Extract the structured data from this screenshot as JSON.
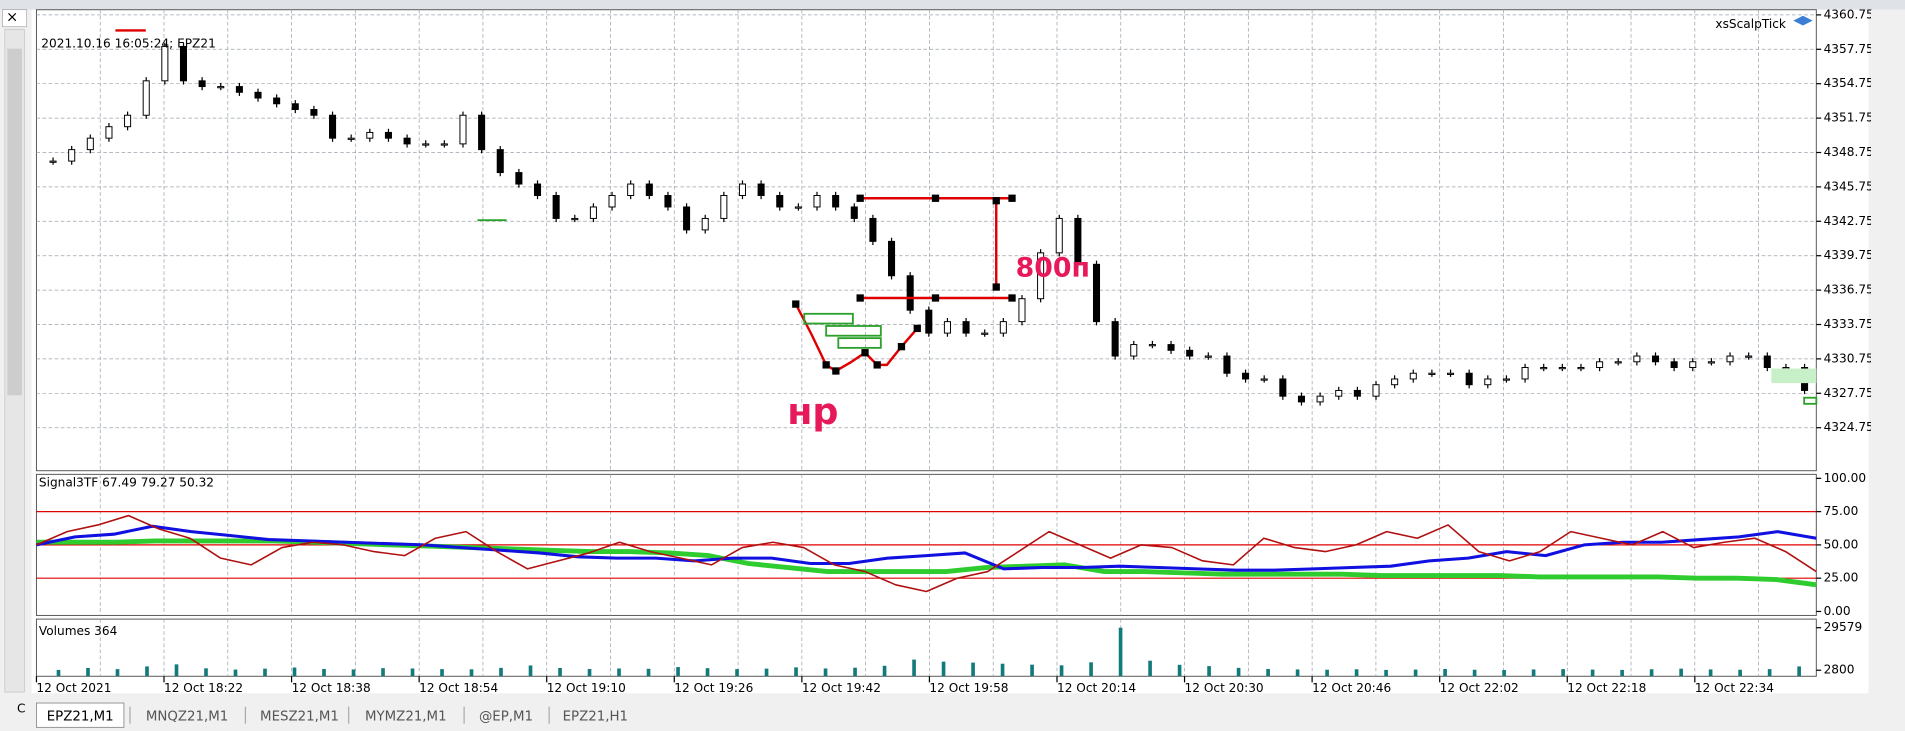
{
  "window": {
    "symbol_info": "2021.10.16 16:05:24; EPZ21",
    "expert": "xsScalpTick"
  },
  "price_chart": {
    "type": "candlestick",
    "closes": [
      4348,
      4349,
      4350,
      4351,
      4352,
      4355,
      4358,
      4355,
      4354.5,
      4354.5,
      4354,
      4353.5,
      4353,
      4352.5,
      4352,
      4350,
      4350,
      4350.5,
      4350,
      4349.5,
      4349.5,
      4349.5,
      4352,
      4349,
      4347,
      4346,
      4345,
      4343,
      4343,
      4344,
      4345,
      4346,
      4345,
      4344,
      4342,
      4343,
      4345,
      4346,
      4345,
      4344,
      4344,
      4345,
      4344,
      4343,
      4341,
      4338,
      4335,
      4333,
      4334,
      4333,
      4333,
      4334,
      4336,
      4340,
      4343,
      4339,
      4334,
      4331,
      4332,
      4332,
      4331.5,
      4331,
      4331,
      4329.5,
      4329,
      4329,
      4327.5,
      4327,
      4327.5,
      4328,
      4327.5,
      4328.5,
      4329,
      4329.5,
      4329.5,
      4329.5,
      4328.5,
      4329,
      4329,
      4330,
      4330,
      4330,
      4330,
      4330.5,
      4330.5,
      4331,
      4330.5,
      4330,
      4330.5,
      4330.5,
      4331,
      4331,
      4330,
      4330,
      4328
    ],
    "ylim": [
      4321.0,
      4361.2
    ],
    "yticks": [
      4360.75,
      4357.75,
      4354.75,
      4351.75,
      4348.75,
      4345.75,
      4342.75,
      4339.75,
      4336.75,
      4333.75,
      4330.75,
      4327.75,
      4324.75
    ],
    "annotations": [
      "800п",
      "нр"
    ]
  },
  "indicator": {
    "type": "line",
    "title": "Signal3TF 67.49 79.27 50.32",
    "ylim": [
      -3,
      103
    ],
    "yticks": [
      {
        "value": 100,
        "label": "100.00"
      },
      {
        "value": 75,
        "label": "75.00"
      },
      {
        "value": 50,
        "label": "50.00"
      },
      {
        "value": 25,
        "label": "25.00"
      },
      {
        "value": 0,
        "label": "0.00"
      }
    ],
    "levels": [
      75,
      50,
      25
    ],
    "level_color": "#e00000",
    "series": [
      {
        "color": "#2ecc2e",
        "width": 4,
        "values": [
          52,
          52,
          52,
          53,
          53,
          53,
          53,
          52,
          51,
          50,
          49,
          48,
          47,
          46,
          45,
          45,
          44,
          42,
          36,
          33,
          30,
          30,
          30,
          30,
          33,
          34,
          35,
          30,
          30,
          29,
          28,
          28,
          28,
          28,
          27,
          27,
          27,
          27,
          26,
          26,
          26,
          26,
          25,
          25,
          24,
          20
        ]
      },
      {
        "color": "#1010e0",
        "width": 2.5,
        "values": [
          50,
          56,
          58,
          64,
          60,
          57,
          54,
          53,
          52,
          51,
          50,
          48,
          46,
          44,
          41,
          40,
          40,
          38,
          40,
          40,
          36,
          36,
          40,
          42,
          44,
          32,
          33,
          33,
          34,
          33,
          32,
          31,
          31,
          32,
          33,
          34,
          38,
          40,
          45,
          42,
          50,
          52,
          52,
          54,
          56,
          60,
          55
        ]
      },
      {
        "color": "#b01010",
        "width": 1.3,
        "values": [
          50,
          60,
          65,
          72,
          62,
          55,
          40,
          35,
          48,
          52,
          50,
          45,
          42,
          55,
          60,
          45,
          32,
          38,
          44,
          52,
          45,
          40,
          35,
          48,
          52,
          48,
          35,
          30,
          20,
          15,
          25,
          30,
          45,
          60,
          50,
          40,
          50,
          48,
          38,
          35,
          55,
          48,
          45,
          50,
          60,
          55,
          65,
          45,
          38,
          45,
          60,
          55,
          50,
          60,
          48,
          52,
          55,
          45,
          30
        ]
      }
    ]
  },
  "volumes": {
    "type": "bar",
    "title": "Volumes 364",
    "color": "#127a7a",
    "values": [
      3000,
      4200,
      3500,
      5200,
      6500,
      4000,
      3200,
      3800,
      4500,
      3600,
      3300,
      4100,
      3900,
      3500,
      3400,
      4300,
      5800,
      4200,
      3600,
      3900,
      3700,
      4800,
      4100,
      3500,
      3800,
      4600,
      3900,
      4400,
      5600,
      9500,
      8200,
      7600,
      6900,
      6300,
      5900,
      7800,
      29579,
      8800,
      6200,
      5400,
      4300,
      3600,
      3300,
      3100,
      3400,
      3000,
      3200,
      3600,
      3100,
      2950,
      3300,
      3500,
      3200,
      3000,
      3400,
      3800,
      3300,
      3100,
      3500,
      5200
    ],
    "ylim": [
      -1000,
      35000
    ],
    "yticks": [
      29579,
      2800
    ]
  },
  "x_axis": {
    "labels": [
      "12 Oct 2021",
      "12 Oct 18:22",
      "12 Oct 18:38",
      "12 Oct 18:54",
      "12 Oct 19:10",
      "12 Oct 19:26",
      "12 Oct 19:42",
      "12 Oct 19:58",
      "12 Oct 20:14",
      "12 Oct 20:30",
      "12 Oct 20:46",
      "12 Oct 22:02",
      "12 Oct 22:18",
      "12 Oct 22:34"
    ]
  },
  "tabs": [
    "EPZ21,M1",
    "MNQZ21,M1",
    "MESZ21,M1",
    "MYMZ21,M1",
    "@EP,M1",
    "EPZ21,H1"
  ]
}
